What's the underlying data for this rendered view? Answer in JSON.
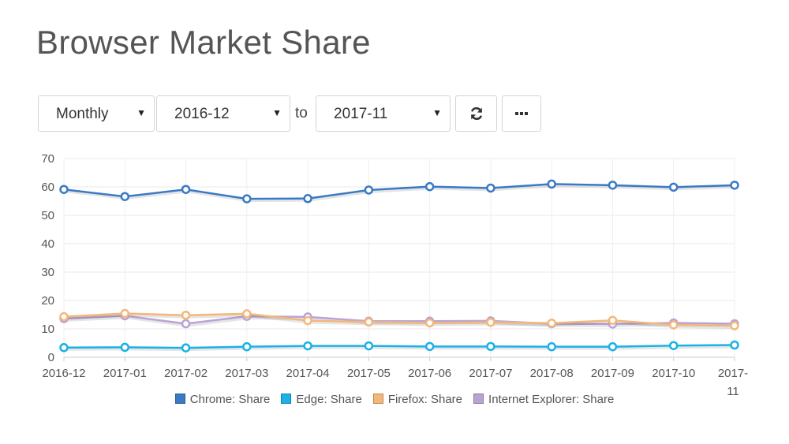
{
  "page": {
    "title": "Browser Market Share"
  },
  "controls": {
    "granularity": "Monthly",
    "from": "2016-12",
    "to_label": "to",
    "to": "2017-11",
    "refresh_icon": "refresh-icon",
    "more_icon": "ellipsis-icon"
  },
  "chart_data": {
    "type": "line",
    "x": [
      "2016-12",
      "2017-01",
      "2017-02",
      "2017-03",
      "2017-04",
      "2017-05",
      "2017-06",
      "2017-07",
      "2017-08",
      "2017-09",
      "2017-10",
      "2017-11"
    ],
    "ylim": [
      0,
      70
    ],
    "yticks": [
      0,
      10,
      20,
      30,
      40,
      50,
      60,
      70
    ],
    "grid": true,
    "legend_position": "bottom",
    "series": [
      {
        "name": "Chrome: Share",
        "color": "#3a7ac4",
        "values": [
          59.1,
          56.6,
          59.1,
          55.8,
          55.9,
          58.9,
          60.1,
          59.6,
          61.0,
          60.6,
          59.9,
          60.6
        ]
      },
      {
        "name": "Edge: Share",
        "color": "#1ab1e6",
        "values": [
          3.4,
          3.5,
          3.3,
          3.7,
          4.0,
          4.0,
          3.8,
          3.8,
          3.7,
          3.7,
          4.1,
          4.3
        ]
      },
      {
        "name": "Firefox: Share",
        "color": "#f4b77a",
        "values": [
          14.3,
          15.4,
          14.8,
          15.3,
          12.9,
          12.4,
          12.1,
          12.3,
          12.0,
          13.0,
          11.4,
          11.1
        ]
      },
      {
        "name": "Internet Explorer: Share",
        "color": "#b9a3d4",
        "values": [
          13.6,
          14.6,
          11.8,
          14.4,
          14.2,
          12.7,
          12.7,
          12.8,
          11.8,
          11.7,
          12.1,
          11.8
        ]
      }
    ]
  }
}
